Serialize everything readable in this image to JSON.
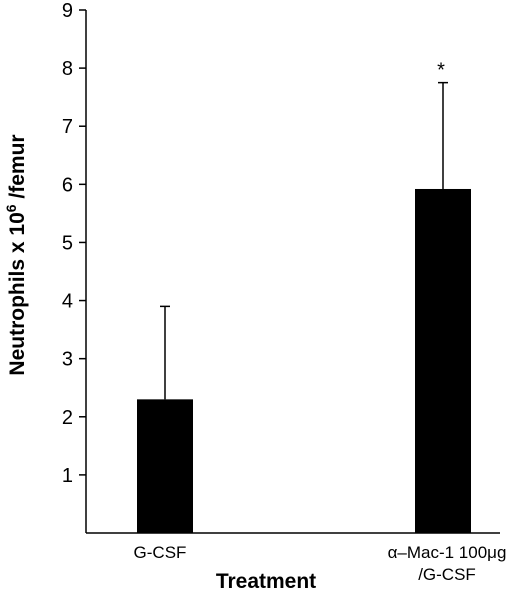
{
  "chart_data": {
    "type": "bar",
    "title": "",
    "xlabel": "Treatment",
    "ylabel": {
      "main": "Neutrophils x 10",
      "superscript": "6",
      "suffix": " /femur"
    },
    "ylim": [
      0,
      9
    ],
    "yticks": [
      "1",
      "2",
      "3",
      "4",
      "5",
      "6",
      "7",
      "8",
      "9"
    ],
    "categories": [
      {
        "lines": [
          "G-CSF"
        ]
      },
      {
        "lines": [
          "α–Mac-1 100μg",
          "/G-CSF"
        ]
      }
    ],
    "values": [
      2.3,
      5.92
    ],
    "error_upper": [
      3.9,
      7.75
    ],
    "annotations": [
      "",
      "*"
    ],
    "bar_color": "#000000",
    "grid": false
  }
}
